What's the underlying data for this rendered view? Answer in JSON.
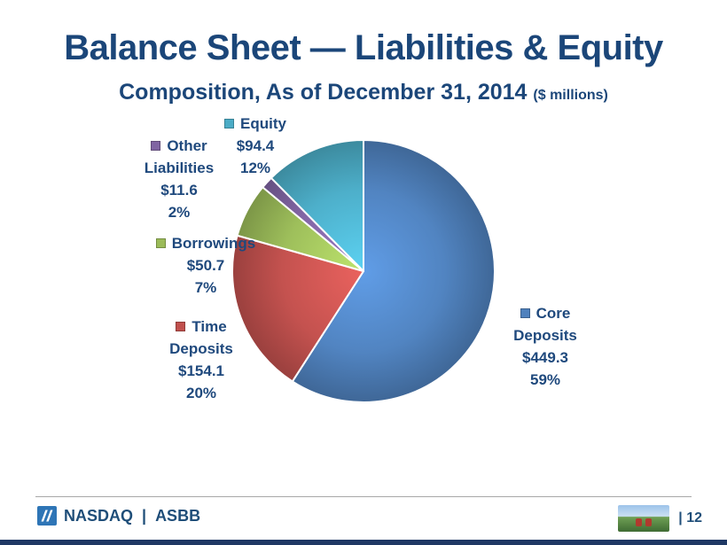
{
  "slide": {
    "title": "Balance Sheet — Liabilities & Equity",
    "subtitle": "Composition, As of December 31, 2014",
    "subtitle_unit": "($ millions)"
  },
  "chart_data": {
    "type": "pie",
    "title": "Balance Sheet — Liabilities & Equity",
    "subtitle": "Composition, As of December 31, 2014 ($ millions)",
    "unit": "$ millions",
    "start_angle_deg": -90,
    "direction": "clockwise",
    "legend_position": "around",
    "slices": [
      {
        "label": "Core Deposits",
        "value": 449.3,
        "display_value": "$449.3",
        "pct": "59%",
        "color": "#4F81BD"
      },
      {
        "label": "Time Deposits",
        "value": 154.1,
        "display_value": "$154.1",
        "pct": "20%",
        "color": "#C0504D"
      },
      {
        "label": "Borrowings",
        "value": 50.7,
        "display_value": "$50.7",
        "pct": "7%",
        "color": "#9BBB59"
      },
      {
        "label": "Other Liabilities",
        "value": 11.6,
        "display_value": "$11.6",
        "pct": "2%",
        "color": "#8064A2"
      },
      {
        "label": "Equity",
        "value": 94.4,
        "display_value": "$94.4",
        "pct": "12%",
        "color": "#4BACC6"
      }
    ]
  },
  "footer": {
    "brand": "NASDAQ",
    "divider": "|",
    "ticker": "ASBB",
    "page_label": "| 12"
  }
}
